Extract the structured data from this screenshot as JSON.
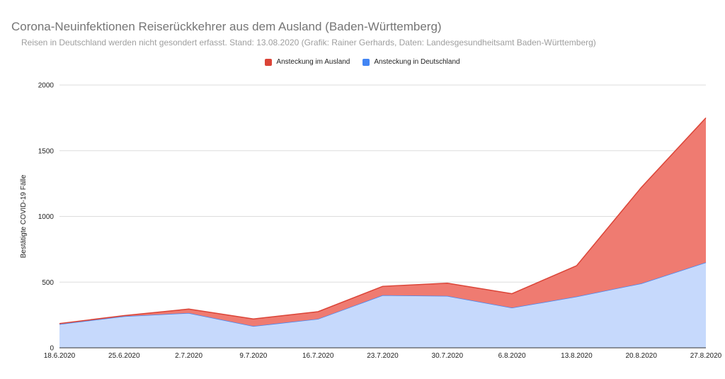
{
  "chart_data": {
    "type": "area",
    "stacked": true,
    "title": "Corona-Neuinfektionen Reiserückkehrer aus dem Ausland (Baden-Württemberg)",
    "subtitle": "Reisen in Deutschland werden nicht gesondert erfasst. Stand: 13.08.2020 (Grafik: Rainer Gerhards, Daten: Landesgesundheitsamt Baden-Württemberg)",
    "xlabel": "",
    "ylabel": "Bestätigte COVID-19 Fälle",
    "ylim": [
      0,
      2000
    ],
    "yticks": [
      "0",
      "500",
      "1000",
      "1500",
      "2000"
    ],
    "grid": true,
    "legend_position": "top",
    "categories": [
      "18.6.2020",
      "25.6.2020",
      "2.7.2020",
      "9.7.2020",
      "16.7.2020",
      "23.7.2020",
      "30.7.2020",
      "6.8.2020",
      "13.8.2020",
      "20.8.2020",
      "27.8.2020"
    ],
    "series": [
      {
        "name": "Ansteckung in Deutschland",
        "color": "#4285f4",
        "fill": "#c6d9fc",
        "values": [
          180,
          240,
          265,
          165,
          220,
          400,
          395,
          305,
          390,
          490,
          650
        ]
      },
      {
        "name": "Ansteckung im Ausland",
        "color": "#db4437",
        "fill": "#ef7b71",
        "values": [
          5,
          5,
          30,
          55,
          55,
          68,
          97,
          107,
          235,
          730,
          1100
        ]
      }
    ],
    "legend_order": [
      1,
      0
    ]
  }
}
